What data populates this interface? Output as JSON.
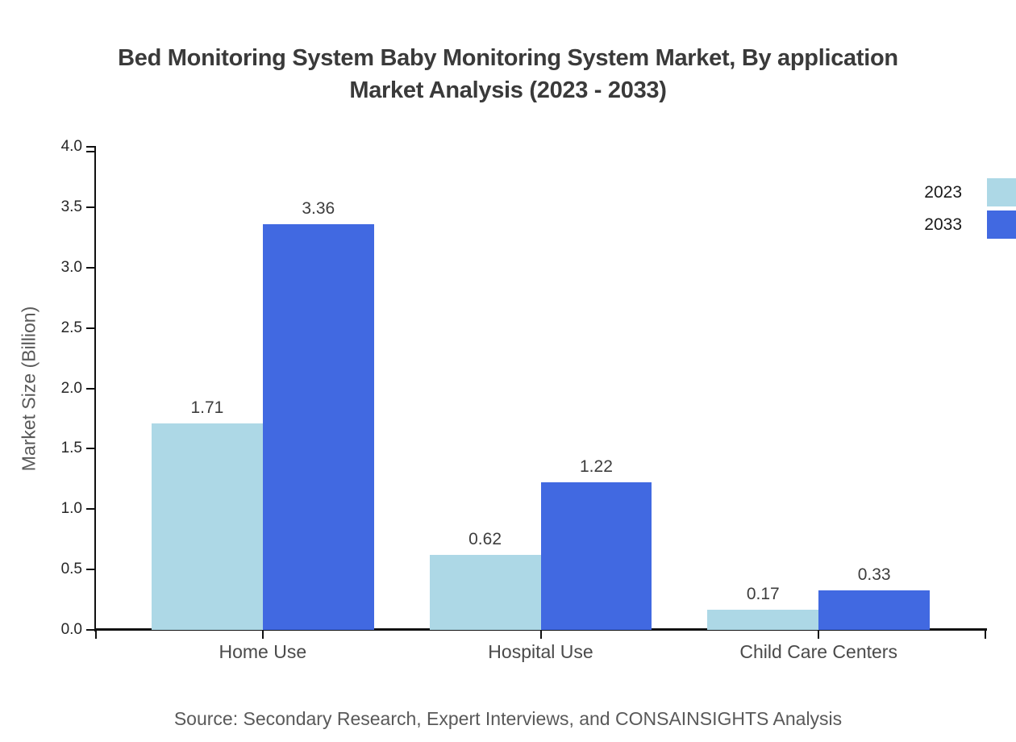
{
  "header": {
    "title_lines": [
      "Bed Monitoring System Baby Monitoring System Market, By application",
      "Market Analysis (2023 - 2033)"
    ]
  },
  "chart_data": {
    "type": "bar",
    "title": "Bed Monitoring System Baby Monitoring System Market, By application Market Analysis (2023 - 2033)",
    "categories": [
      "Home Use",
      "Hospital Use",
      "Child Care Centers"
    ],
    "series": [
      {
        "name": "2023",
        "color": "#ADD8E6",
        "values": [
          1.71,
          0.62,
          0.17
        ]
      },
      {
        "name": "2033",
        "color": "#4169E1",
        "values": [
          3.36,
          1.22,
          0.33
        ]
      }
    ],
    "value_labels": [
      "1.71",
      "3.36",
      "0.62",
      "1.22",
      "0.17",
      "0.33"
    ],
    "xlabel": "",
    "ylabel": "Market Size (Billion)",
    "ylim": [
      0,
      4
    ],
    "ytick_step": 0.5,
    "yticks": [
      "0.0",
      "0.5",
      "1.0",
      "1.5",
      "2.0",
      "2.5",
      "3.0",
      "3.5",
      "4.0"
    ],
    "grid": false,
    "legend_position": "right-edge",
    "background": "#ffffff",
    "axis_color": "#111111",
    "text_color": "#3a3a3a"
  },
  "footer": {
    "source": "Source: Secondary Research, Expert Interviews, and CONSAINSIGHTS Analysis"
  }
}
